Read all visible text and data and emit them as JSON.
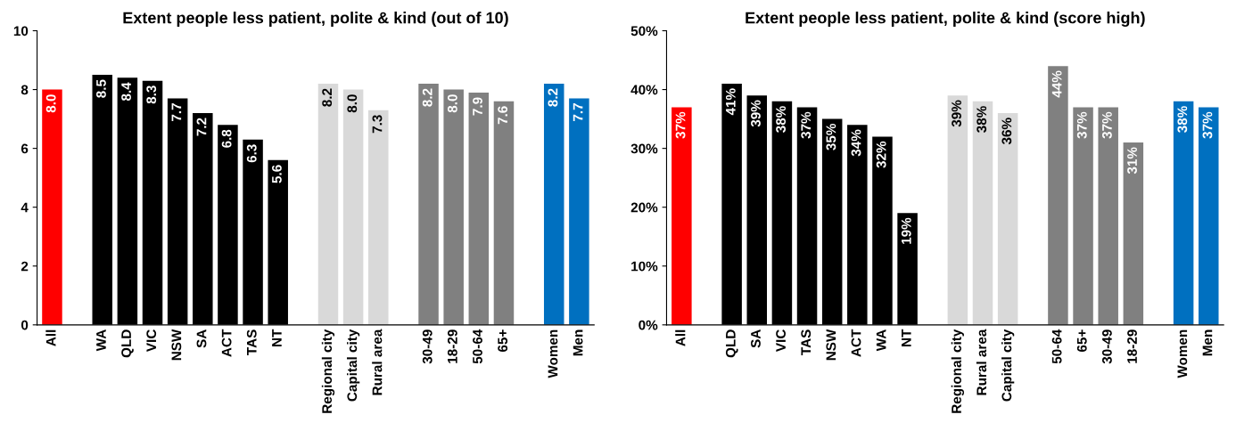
{
  "chart_data": [
    {
      "type": "bar",
      "title": "Extent people less patient, polite & kind (out of 10)",
      "categories": [
        "All",
        null,
        "WA",
        "QLD",
        "VIC",
        "NSW",
        "SA",
        "ACT",
        "TAS",
        "NT",
        null,
        "Regional city",
        "Capital city",
        "Rural area",
        null,
        "30-49",
        "18-29",
        "50-64",
        "65+",
        null,
        "Women",
        "Men"
      ],
      "values": [
        8.0,
        null,
        8.5,
        8.4,
        8.3,
        7.7,
        7.2,
        6.8,
        6.3,
        5.6,
        null,
        8.2,
        8.0,
        7.3,
        null,
        8.2,
        8.0,
        7.9,
        7.6,
        null,
        8.2,
        7.7
      ],
      "value_labels": [
        "8.0",
        null,
        "8.5",
        "8.4",
        "8.3",
        "7.7",
        "7.2",
        "6.8",
        "6.3",
        "5.6",
        null,
        "8.2",
        "8.0",
        "7.3",
        null,
        "8.2",
        "8.0",
        "7.9",
        "7.6",
        null,
        "8.2",
        "7.7"
      ],
      "colors": [
        "#ff0000",
        null,
        "#000000",
        "#000000",
        "#000000",
        "#000000",
        "#000000",
        "#000000",
        "#000000",
        "#000000",
        null,
        "#d9d9d9",
        "#d9d9d9",
        "#d9d9d9",
        null,
        "#808080",
        "#808080",
        "#808080",
        "#808080",
        null,
        "#0070c0",
        "#0070c0"
      ],
      "ylim": [
        0,
        10
      ],
      "yticks": [
        0,
        2,
        4,
        6,
        8,
        10
      ]
    },
    {
      "type": "bar",
      "title": "Extent people less patient, polite & kind (score high)",
      "categories": [
        "All",
        null,
        "QLD",
        "SA",
        "VIC",
        "TAS",
        "NSW",
        "ACT",
        "WA",
        "NT",
        null,
        "Regional city",
        "Rural area",
        "Capital city",
        null,
        "50-64",
        "65+",
        "30-49",
        "18-29",
        null,
        "Women",
        "Men"
      ],
      "values": [
        37,
        null,
        41,
        39,
        38,
        37,
        35,
        34,
        32,
        19,
        null,
        39,
        38,
        36,
        null,
        44,
        37,
        37,
        31,
        null,
        38,
        37
      ],
      "value_labels": [
        "37%",
        null,
        "41%",
        "39%",
        "38%",
        "37%",
        "35%",
        "34%",
        "32%",
        "19%",
        null,
        "39%",
        "38%",
        "36%",
        null,
        "44%",
        "37%",
        "37%",
        "31%",
        null,
        "38%",
        "37%"
      ],
      "colors": [
        "#ff0000",
        null,
        "#000000",
        "#000000",
        "#000000",
        "#000000",
        "#000000",
        "#000000",
        "#000000",
        "#000000",
        null,
        "#d9d9d9",
        "#d9d9d9",
        "#d9d9d9",
        null,
        "#808080",
        "#808080",
        "#808080",
        "#808080",
        null,
        "#0070c0",
        "#0070c0"
      ],
      "ylim": [
        0,
        50
      ],
      "yticks": [
        {
          "value": 0,
          "label": "0%"
        },
        {
          "value": 10,
          "label": "10%"
        },
        {
          "value": 20,
          "label": "20%"
        },
        {
          "value": 30,
          "label": "30%"
        },
        {
          "value": 40,
          "label": "40%"
        },
        {
          "value": 50,
          "label": "50%"
        }
      ]
    }
  ]
}
